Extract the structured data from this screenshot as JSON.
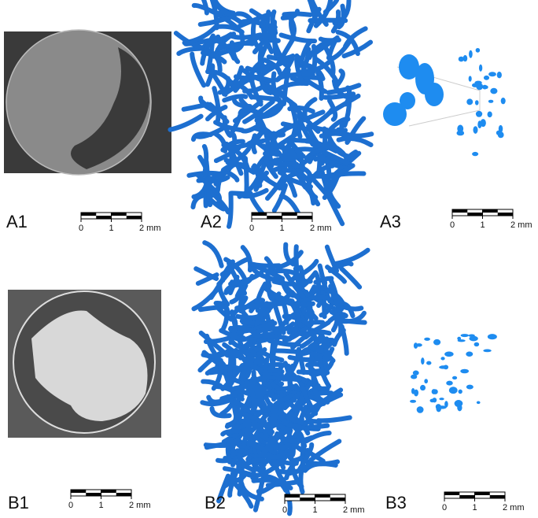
{
  "panels": [
    {
      "label": "A1",
      "scale": [
        "0",
        "1",
        "2 mm"
      ]
    },
    {
      "label": "A2",
      "scale": [
        "0",
        "1",
        "2 mm"
      ]
    },
    {
      "label": "A3",
      "scale": [
        "0",
        "1",
        "2 mm"
      ]
    },
    {
      "label": "B1",
      "scale": [
        "0",
        "1",
        "2 mm"
      ]
    },
    {
      "label": "B2",
      "scale": [
        "0",
        "1",
        "2 mm"
      ]
    },
    {
      "label": "B3",
      "scale": [
        "0",
        "1",
        "2 mm"
      ]
    }
  ]
}
